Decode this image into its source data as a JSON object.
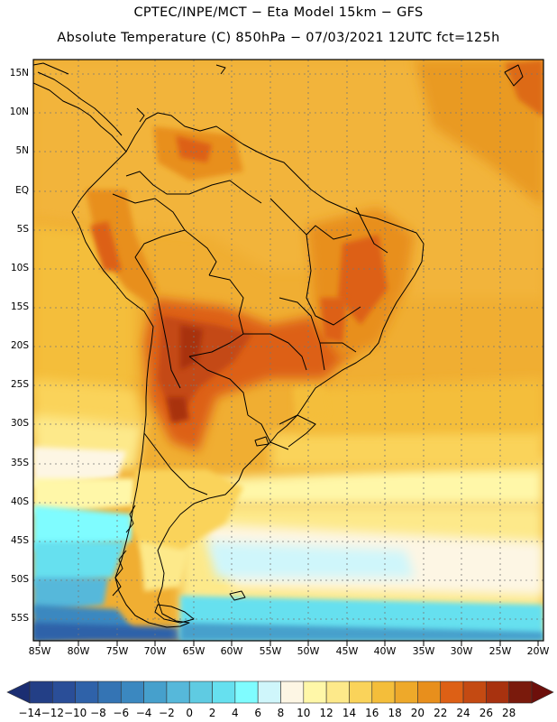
{
  "header": {
    "line1": "CPTEC/INPE/MCT  −   Eta Model 15km  −  GFS",
    "line2": "Absolute Temperature (C) 850hPa − 07/03/2021 12UTC fct=125h"
  },
  "axes": {
    "lon_labels": [
      "85W",
      "80W",
      "75W",
      "70W",
      "65W",
      "60W",
      "55W",
      "50W",
      "45W",
      "40W",
      "35W",
      "30W",
      "25W",
      "20W"
    ],
    "lat_labels": [
      "15N",
      "10N",
      "5N",
      "EQ",
      "5S",
      "10S",
      "15S",
      "20S",
      "25S",
      "30S",
      "35S",
      "40S",
      "45S",
      "50S",
      "55S"
    ]
  },
  "colorbar": {
    "labels": [
      "−14",
      "−12",
      "−10",
      "−8",
      "−6",
      "−4",
      "−2",
      "0",
      "2",
      "4",
      "6",
      "8",
      "10",
      "12",
      "14",
      "16",
      "18",
      "20",
      "22",
      "24",
      "26",
      "28"
    ],
    "colors": [
      "#233f86",
      "#2a4e98",
      "#2f62a9",
      "#3474b4",
      "#3b88c0",
      "#46a0cc",
      "#56b8da",
      "#5fcbe2",
      "#66e0ef",
      "#7ffcff",
      "#cff6fb",
      "#fdf6e4",
      "#fff7a8",
      "#fde98a",
      "#fad35a",
      "#f4be3a",
      "#eea92a",
      "#e88f1c",
      "#dd6015",
      "#c44a12",
      "#a8320f",
      "#7a1a0c"
    ],
    "low_color": "#1b2e72",
    "high_color": "#6d0f0b"
  },
  "legend_colors": {
    "ocean_default": "#f0ae32",
    "land_outline": "#000000",
    "grid": "#888888"
  }
}
